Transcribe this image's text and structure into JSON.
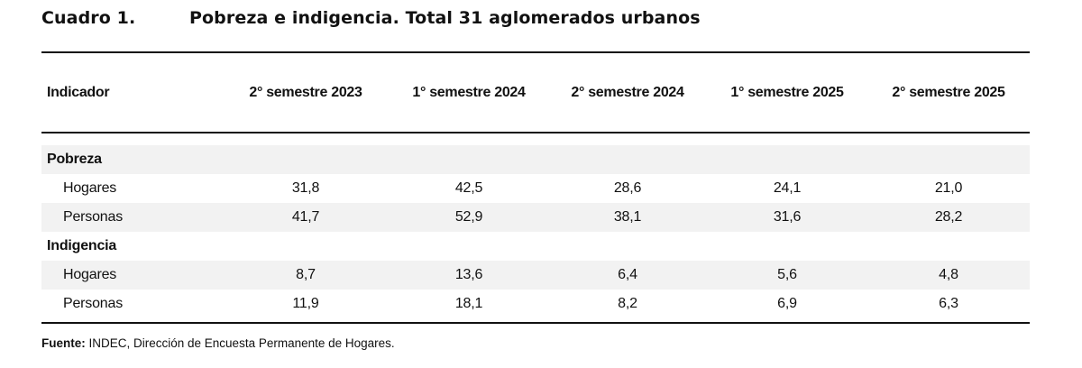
{
  "caption": {
    "number": "Cuadro 1.",
    "title": "Pobreza e indigencia. Total 31 aglomerados urbanos"
  },
  "table": {
    "columns": [
      "Indicador",
      "2° semestre 2023",
      "1° semestre 2024",
      "2° semestre 2024",
      "1° semestre 2025",
      "2° semestre 2025"
    ],
    "groups": [
      {
        "name": "Pobreza",
        "rows": [
          {
            "label": "Hogares",
            "values": [
              "31,8",
              "42,5",
              "28,6",
              "24,1",
              "21,0"
            ]
          },
          {
            "label": "Personas",
            "values": [
              "41,7",
              "52,9",
              "38,1",
              "31,6",
              "28,2"
            ]
          }
        ]
      },
      {
        "name": "Indigencia",
        "rows": [
          {
            "label": "Hogares",
            "values": [
              "8,7",
              "13,6",
              "6,4",
              "5,6",
              "4,8"
            ]
          },
          {
            "label": "Personas",
            "values": [
              "11,9",
              "18,1",
              "8,2",
              "6,9",
              "6,3"
            ]
          }
        ]
      }
    ]
  },
  "source": {
    "label": "Fuente:",
    "text": " INDEC, Dirección de Encuesta Permanente de Hogares."
  }
}
